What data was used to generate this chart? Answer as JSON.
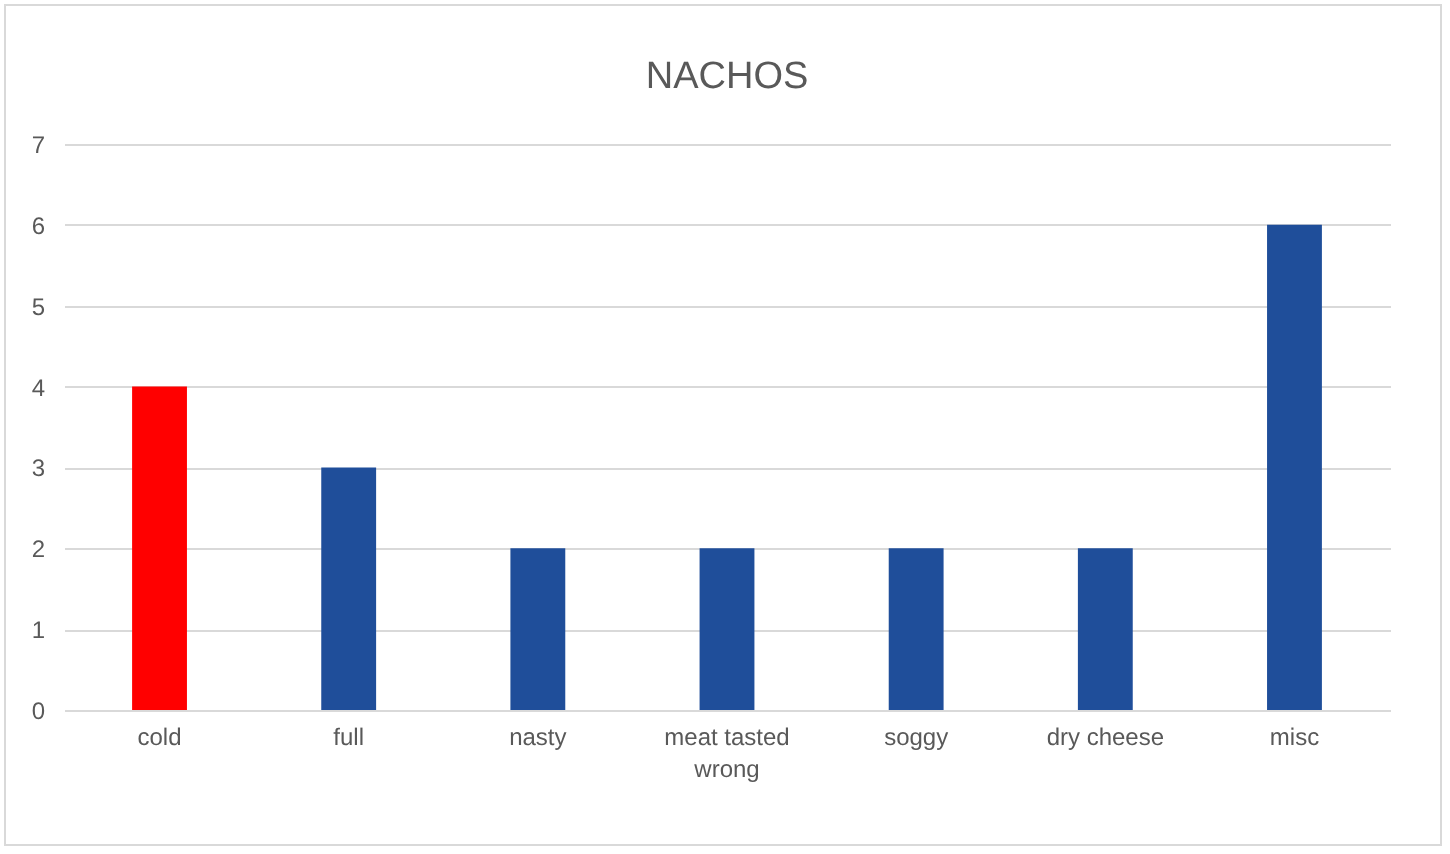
{
  "chart_data": {
    "type": "bar",
    "title": "NACHOS",
    "categories": [
      "cold",
      "full",
      "nasty",
      "meat tasted wrong",
      "soggy",
      "dry cheese",
      "misc"
    ],
    "values": [
      4,
      3,
      2,
      2,
      2,
      2,
      6
    ],
    "colors": [
      "#ff0000",
      "#1f4e9a",
      "#1f4e9a",
      "#1f4e9a",
      "#1f4e9a",
      "#1f4e9a",
      "#1f4e9a"
    ],
    "ylim": [
      0,
      7
    ],
    "yticks": [
      0,
      1,
      2,
      3,
      4,
      5,
      6,
      7
    ],
    "grid": "y"
  }
}
